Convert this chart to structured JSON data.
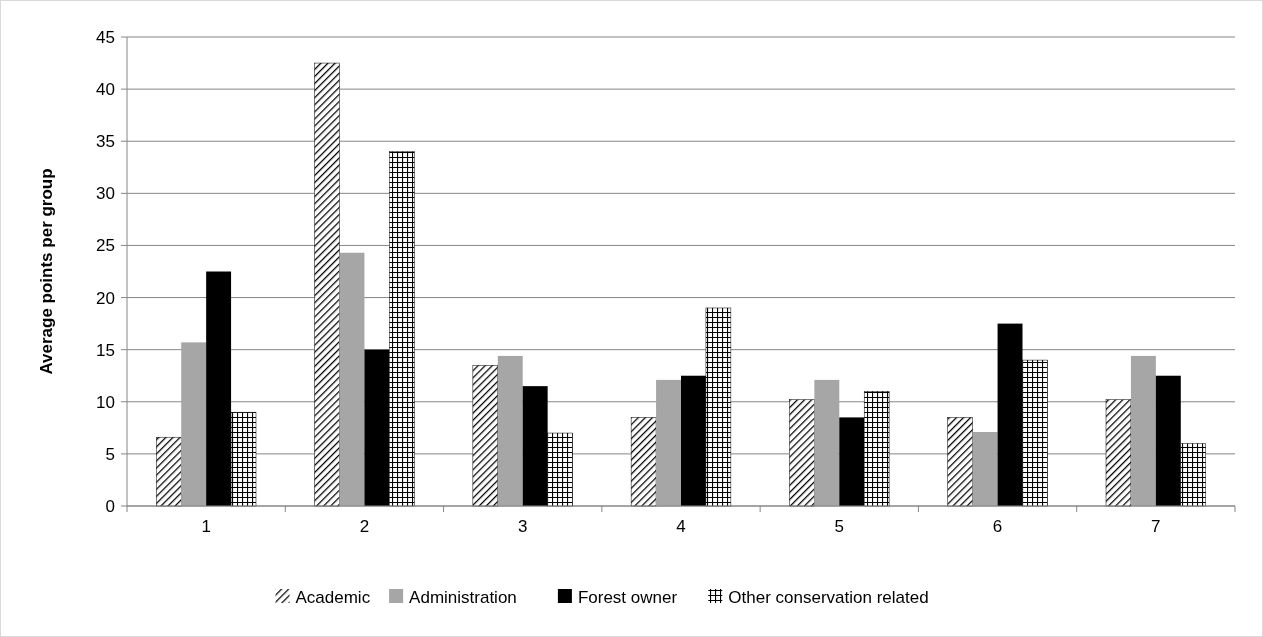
{
  "chart_data": {
    "type": "bar",
    "ylabel": "Average points per group",
    "categories": [
      "1",
      "2",
      "3",
      "4",
      "5",
      "6",
      "7"
    ],
    "series": [
      {
        "name": "Academic",
        "color": "#000000",
        "values": [
          6.6,
          42.5,
          13.5,
          8.5,
          10.2,
          8.5,
          10.2
        ]
      },
      {
        "name": "Administration",
        "color": "#a6a6a6",
        "values": [
          15.7,
          24.3,
          14.4,
          12.1,
          12.1,
          7.1,
          14.4
        ]
      },
      {
        "name": "Forest owner",
        "color": "#000000",
        "values": [
          22.5,
          15,
          11.5,
          12.5,
          8.5,
          17.5,
          12.5
        ]
      },
      {
        "name": "Other conservation related",
        "color": "#000000",
        "values": [
          9,
          34,
          7,
          19,
          11,
          14,
          6
        ]
      }
    ],
    "ylim": [
      0,
      45
    ],
    "yticks": [
      0,
      5,
      10,
      15,
      20,
      25,
      30,
      35,
      40,
      45
    ],
    "grid": "y",
    "legend": "bottom"
  }
}
